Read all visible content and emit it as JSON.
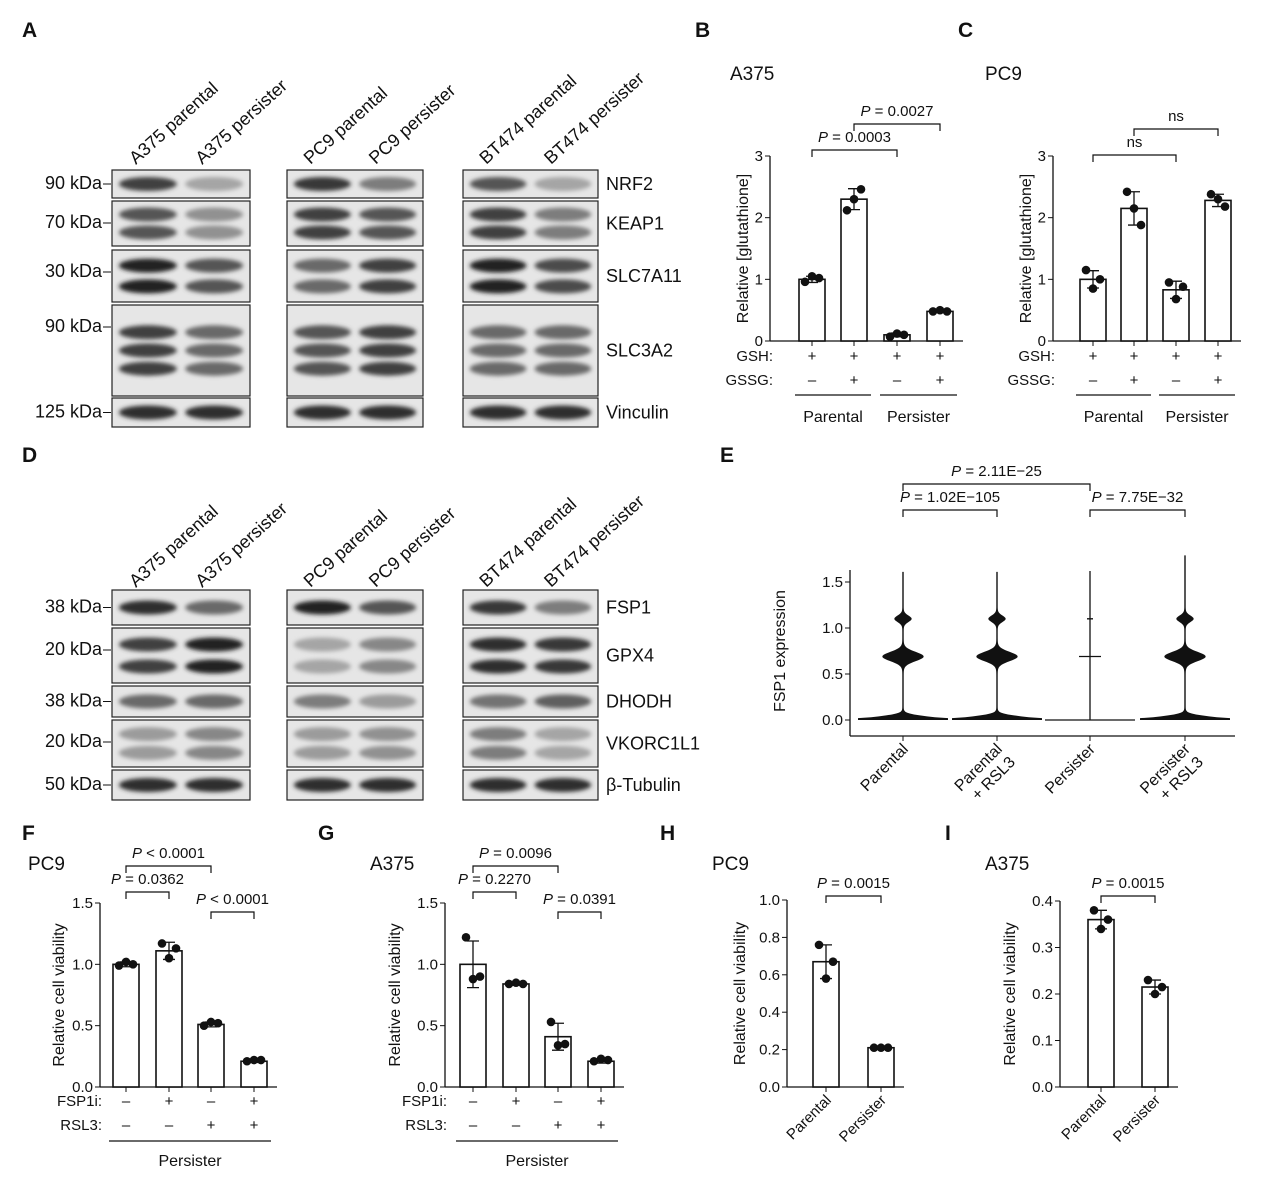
{
  "panel_letters": [
    "A",
    "B",
    "C",
    "D",
    "E",
    "F",
    "G",
    "H",
    "I"
  ],
  "blots": [
    {
      "panel": "A",
      "lanes": [
        "A375 parental",
        "A375 persister",
        "PC9 parental",
        "PC9 persister",
        "BT474 parental",
        "BT474 persister"
      ],
      "rows": [
        {
          "target": "NRF2",
          "kda": "90 kDa",
          "intensity": [
            0.8,
            0.3,
            0.85,
            0.5,
            0.7,
            0.3
          ]
        },
        {
          "target": "KEAP1",
          "kda": "70 kDa",
          "intensity": [
            0.7,
            0.4,
            0.8,
            0.7,
            0.8,
            0.5
          ]
        },
        {
          "target": "SLC7A11",
          "kda": "30 kDa",
          "intensity": [
            0.95,
            0.7,
            0.6,
            0.8,
            0.95,
            0.75
          ]
        },
        {
          "target": "SLC3A2",
          "kda": "90 kDa",
          "intensity": [
            0.8,
            0.6,
            0.7,
            0.8,
            0.6,
            0.6
          ]
        },
        {
          "target": "Vinculin",
          "kda": "125 kDa",
          "intensity": [
            0.9,
            0.9,
            0.9,
            0.9,
            0.9,
            0.9
          ]
        }
      ]
    },
    {
      "panel": "D",
      "lanes": [
        "A375 parental",
        "A375 persister",
        "PC9 parental",
        "PC9 persister",
        "BT474 parental",
        "BT474 persister"
      ],
      "rows": [
        {
          "target": "FSP1",
          "kda": "38 kDa",
          "intensity": [
            0.9,
            0.6,
            0.95,
            0.7,
            0.85,
            0.5
          ]
        },
        {
          "target": "GPX4",
          "kda": "20 kDa",
          "intensity": [
            0.8,
            0.95,
            0.3,
            0.45,
            0.9,
            0.85
          ]
        },
        {
          "target": "DHODH",
          "kda": "38 kDa",
          "intensity": [
            0.6,
            0.6,
            0.5,
            0.35,
            0.55,
            0.65
          ]
        },
        {
          "target": "VKORC1L1",
          "kda": "20 kDa",
          "intensity": [
            0.35,
            0.45,
            0.35,
            0.4,
            0.5,
            0.3
          ]
        },
        {
          "target": "β-Tubulin",
          "kda": "50 kDa",
          "intensity": [
            0.9,
            0.9,
            0.9,
            0.9,
            0.9,
            0.9
          ]
        }
      ]
    }
  ],
  "chart_data": [
    {
      "panel": "B",
      "type": "bar",
      "title": "A375",
      "ylabel": "Relative [glutathione]",
      "ylim": [
        0,
        3
      ],
      "yticks": [
        "0",
        "1",
        "2",
        "3"
      ],
      "values": [
        1.0,
        2.3,
        0.1,
        0.48
      ],
      "sd": [
        0.05,
        0.17,
        0.03,
        0.02
      ],
      "points": [
        [
          0.96,
          1.05,
          1.02
        ],
        [
          2.12,
          2.3,
          2.46
        ],
        [
          0.07,
          0.12,
          0.1
        ],
        [
          0.48,
          0.5,
          0.48
        ]
      ],
      "conditions": [
        {
          "label": "GSH:",
          "values": [
            "+",
            "+",
            "+",
            "+"
          ]
        },
        {
          "label": "GSSG:",
          "values": [
            "–",
            "+",
            "–",
            "+"
          ]
        }
      ],
      "groups": [
        {
          "label": "Parental",
          "bars": [
            0,
            1
          ]
        },
        {
          "label": "Persister",
          "bars": [
            2,
            3
          ]
        }
      ],
      "comparisons": [
        {
          "bars": [
            0,
            2
          ],
          "p": "P",
          "text": " = 0.0003"
        },
        {
          "bars": [
            1,
            3
          ],
          "p": "P",
          "text": " = 0.0027"
        }
      ]
    },
    {
      "panel": "C",
      "type": "bar",
      "title": "PC9",
      "ylabel": "Relative [glutathione]",
      "ylim": [
        0,
        3
      ],
      "yticks": [
        "0",
        "1",
        "2",
        "3"
      ],
      "values": [
        1.0,
        2.15,
        0.83,
        2.28
      ],
      "sd": [
        0.14,
        0.27,
        0.14,
        0.1
      ],
      "points": [
        [
          1.15,
          0.85,
          1.0
        ],
        [
          2.42,
          2.15,
          1.88
        ],
        [
          0.95,
          0.68,
          0.88
        ],
        [
          2.38,
          2.3,
          2.18
        ]
      ],
      "conditions": [
        {
          "label": "GSH:",
          "values": [
            "+",
            "+",
            "+",
            "+"
          ]
        },
        {
          "label": "GSSG:",
          "values": [
            "–",
            "+",
            "–",
            "+"
          ]
        }
      ],
      "groups": [
        {
          "label": "Parental",
          "bars": [
            0,
            1
          ]
        },
        {
          "label": "Persister",
          "bars": [
            2,
            3
          ]
        }
      ],
      "comparisons": [
        {
          "bars": [
            0,
            2
          ],
          "p": "",
          "text": "ns"
        },
        {
          "bars": [
            1,
            3
          ],
          "p": "",
          "text": "ns"
        }
      ]
    },
    {
      "panel": "E",
      "type": "violin",
      "ylabel": "FSP1 expression",
      "ylim": [
        0,
        1.6
      ],
      "yticks": [
        "0.0",
        "0.5",
        "1.0",
        "1.5"
      ],
      "categories": [
        [
          "Parental",
          ""
        ],
        [
          "Parental",
          "+ RSL3"
        ],
        [
          "Persister",
          ""
        ],
        [
          "Persister",
          "+ RSL3"
        ]
      ],
      "comparisons": [
        {
          "bars": [
            0,
            1
          ],
          "p": "P",
          "text": " = 1.02E−105"
        },
        {
          "bars": [
            2,
            3
          ],
          "p": "P",
          "text": " = 7.75E−32"
        },
        {
          "bars": [
            0,
            2
          ],
          "p": "P",
          "text": " = 2.11E−25"
        }
      ]
    },
    {
      "panel": "F",
      "type": "bar",
      "title": "PC9",
      "ylabel": "Relative cell viability",
      "ylim": [
        0,
        1.5
      ],
      "yticks": [
        "0.0",
        "0.5",
        "1.0",
        "1.5"
      ],
      "values": [
        1.0,
        1.11,
        0.51,
        0.21
      ],
      "sd": [
        0.02,
        0.07,
        0.02,
        0.01
      ],
      "points": [
        [
          0.99,
          1.02,
          1.0
        ],
        [
          1.17,
          1.05,
          1.13
        ],
        [
          0.5,
          0.53,
          0.52
        ],
        [
          0.21,
          0.22,
          0.22
        ]
      ],
      "conditions": [
        {
          "label": "FSP1i:",
          "values": [
            "–",
            "+",
            "–",
            "+"
          ]
        },
        {
          "label": "RSL3:",
          "values": [
            "–",
            "–",
            "+",
            "+"
          ]
        }
      ],
      "groups": [
        {
          "label": "Persister",
          "bars": [
            0,
            3
          ]
        }
      ],
      "comparisons": [
        {
          "bars": [
            0,
            1
          ],
          "p": "P",
          "text": " = 0.0362"
        },
        {
          "bars": [
            0,
            2
          ],
          "p": "P",
          "text": " < 0.0001"
        },
        {
          "bars": [
            2,
            3
          ],
          "p": "P",
          "text": " < 0.0001"
        }
      ]
    },
    {
      "panel": "G",
      "type": "bar",
      "title": "A375",
      "ylabel": "Relative cell viability",
      "ylim": [
        0,
        1.5
      ],
      "yticks": [
        "0.0",
        "0.5",
        "1.0",
        "1.5"
      ],
      "values": [
        1.0,
        0.84,
        0.41,
        0.21
      ],
      "sd": [
        0.19,
        0.01,
        0.11,
        0.015
      ],
      "points": [
        [
          1.22,
          0.88,
          0.9
        ],
        [
          0.84,
          0.85,
          0.84
        ],
        [
          0.53,
          0.34,
          0.35
        ],
        [
          0.21,
          0.23,
          0.22
        ]
      ],
      "conditions": [
        {
          "label": "FSP1i:",
          "values": [
            "–",
            "+",
            "–",
            "+"
          ]
        },
        {
          "label": "RSL3:",
          "values": [
            "–",
            "–",
            "+",
            "+"
          ]
        }
      ],
      "groups": [
        {
          "label": "Persister",
          "bars": [
            0,
            3
          ]
        }
      ],
      "comparisons": [
        {
          "bars": [
            0,
            1
          ],
          "p": "P",
          "text": " = 0.2270"
        },
        {
          "bars": [
            0,
            2
          ],
          "p": "P",
          "text": " = 0.0096"
        },
        {
          "bars": [
            2,
            3
          ],
          "p": "P",
          "text": " = 0.0391"
        }
      ]
    },
    {
      "panel": "H",
      "type": "bar",
      "title": "PC9",
      "ylabel": "Relative cell viability",
      "ylim": [
        0,
        1.0
      ],
      "yticks": [
        "0.0",
        "0.2",
        "0.4",
        "0.6",
        "0.8",
        "1.0"
      ],
      "categories": [
        "Parental",
        "Persister"
      ],
      "values": [
        0.67,
        0.21
      ],
      "sd": [
        0.09,
        0.005
      ],
      "points": [
        [
          0.76,
          0.58,
          0.67
        ],
        [
          0.21,
          0.21,
          0.21
        ]
      ],
      "comparisons": [
        {
          "bars": [
            0,
            1
          ],
          "p": "P",
          "text": " = 0.0015"
        }
      ]
    },
    {
      "panel": "I",
      "type": "bar",
      "title": "A375",
      "ylabel": "Relative cell viability",
      "ylim": [
        0,
        0.4
      ],
      "yticks": [
        "0.0",
        "0.1",
        "0.2",
        "0.3",
        "0.4"
      ],
      "categories": [
        "Parental",
        "Persister"
      ],
      "values": [
        0.36,
        0.215
      ],
      "sd": [
        0.02,
        0.015
      ],
      "points": [
        [
          0.38,
          0.34,
          0.36
        ],
        [
          0.23,
          0.2,
          0.215
        ]
      ],
      "comparisons": [
        {
          "bars": [
            0,
            1
          ],
          "p": "P",
          "text": " = 0.0015"
        }
      ]
    }
  ]
}
